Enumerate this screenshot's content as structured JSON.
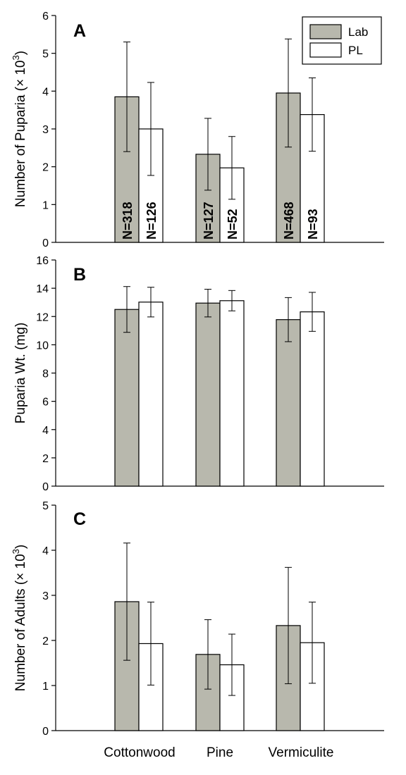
{
  "chart_data": [
    {
      "type": "bar",
      "panel": "A",
      "ylabel": "Number of Puparia (× 10",
      "ylabel_sup": "3",
      "ylabel_close": ")",
      "ylim": [
        0,
        6
      ],
      "yticks": [
        0,
        1,
        2,
        3,
        4,
        5,
        6
      ],
      "categories": [
        "Cottonwood",
        "Pine",
        "Vermiculite"
      ],
      "series": [
        {
          "name": "Lab",
          "color": "#b8b8ad",
          "values": [
            3.85,
            2.33,
            3.95
          ],
          "errors": [
            1.45,
            0.95,
            1.43
          ],
          "n_labels": [
            "N=318",
            "N=127",
            "N=468"
          ]
        },
        {
          "name": "PL",
          "color": "#ffffff",
          "values": [
            3.0,
            1.97,
            3.38
          ],
          "errors": [
            1.23,
            0.83,
            0.97
          ],
          "n_labels": [
            "N=126",
            "N=52",
            "N=93"
          ]
        }
      ],
      "legend": {
        "position": "top-right"
      }
    },
    {
      "type": "bar",
      "panel": "B",
      "ylabel": "Puparia Wt. (mg)",
      "ylim": [
        0,
        16
      ],
      "yticks": [
        0,
        2,
        4,
        6,
        8,
        10,
        12,
        14,
        16
      ],
      "categories": [
        "Cottonwood",
        "Pine",
        "Vermiculite"
      ],
      "series": [
        {
          "name": "Lab",
          "color": "#b8b8ad",
          "values": [
            12.5,
            12.95,
            11.78
          ],
          "errors": [
            1.62,
            0.98,
            1.56
          ]
        },
        {
          "name": "PL",
          "color": "#ffffff",
          "values": [
            13.02,
            13.12,
            12.33
          ],
          "errors": [
            1.05,
            0.72,
            1.38
          ]
        }
      ]
    },
    {
      "type": "bar",
      "panel": "C",
      "ylabel": "Number of Adults (× 10",
      "ylabel_sup": "3",
      "ylabel_close": ")",
      "ylim": [
        0,
        5
      ],
      "yticks": [
        0,
        1,
        2,
        3,
        4,
        5
      ],
      "categories": [
        "Cottonwood",
        "Pine",
        "Vermiculite"
      ],
      "series": [
        {
          "name": "Lab",
          "color": "#b8b8ad",
          "values": [
            2.86,
            1.69,
            2.33
          ],
          "errors": [
            1.3,
            0.77,
            1.29
          ]
        },
        {
          "name": "PL",
          "color": "#ffffff",
          "values": [
            1.93,
            1.46,
            1.95
          ],
          "errors": [
            0.92,
            0.68,
            0.9
          ]
        }
      ]
    }
  ]
}
